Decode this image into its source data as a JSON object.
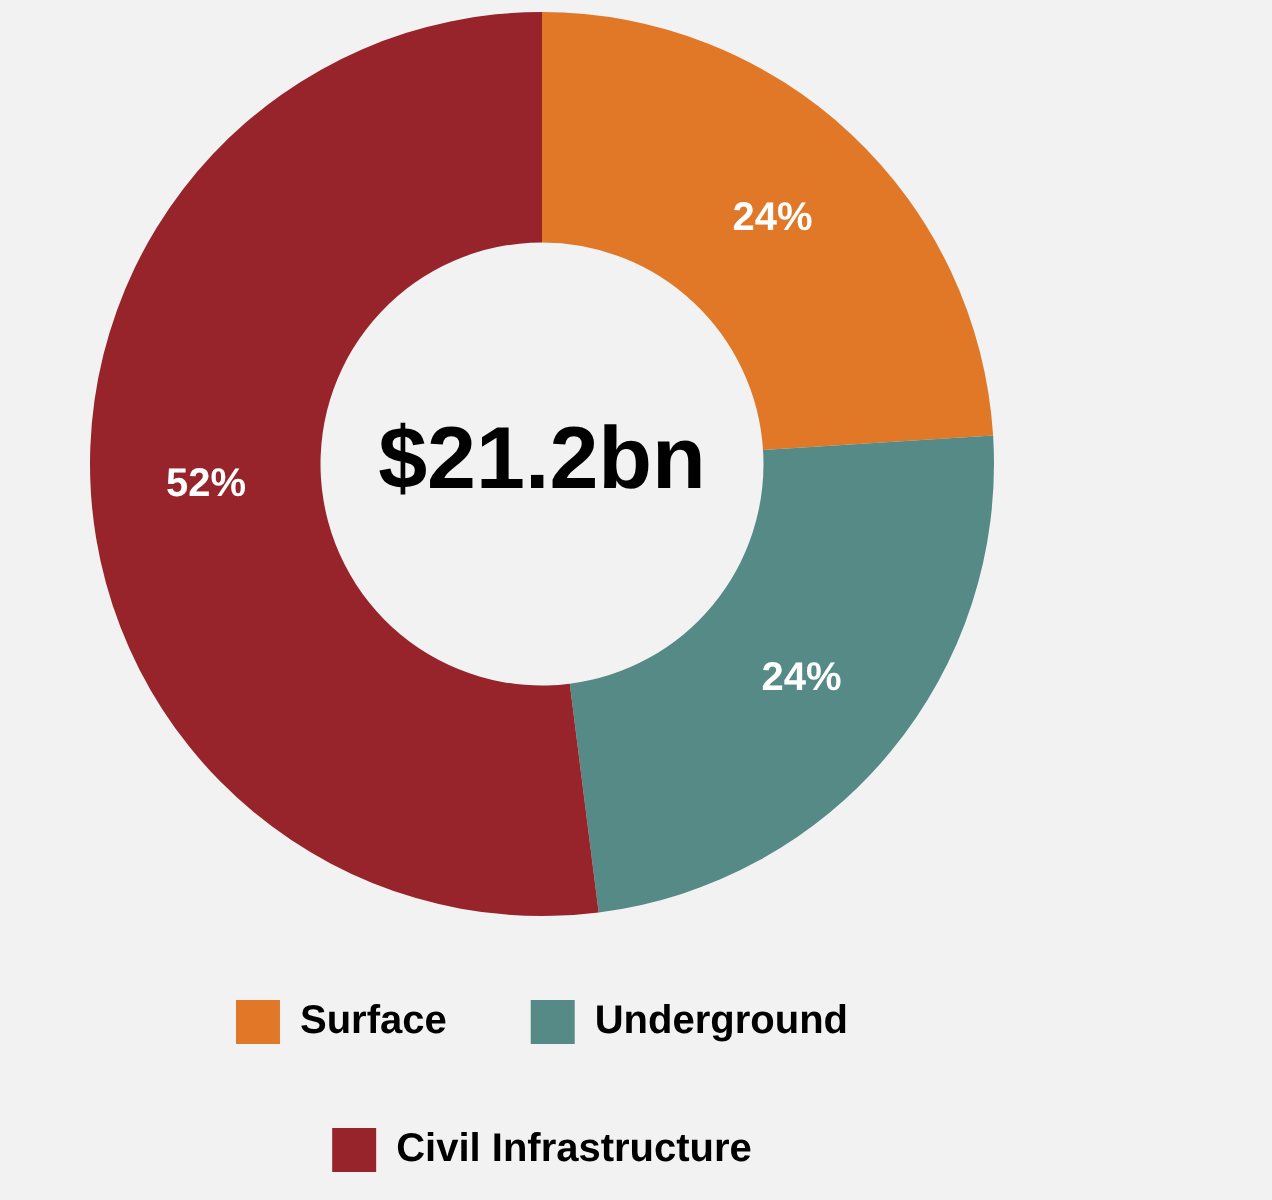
{
  "chart_data": {
    "type": "donut",
    "categories": [
      "Surface",
      "Underground",
      "Civil Infrastructure"
    ],
    "values": [
      24,
      24,
      52
    ],
    "colors": [
      "#e07827",
      "#568a87",
      "#97242b"
    ],
    "value_labels": [
      "24%",
      "24%",
      "52%"
    ],
    "annotations": [
      "$21.2bn"
    ],
    "legend": "bottom"
  }
}
